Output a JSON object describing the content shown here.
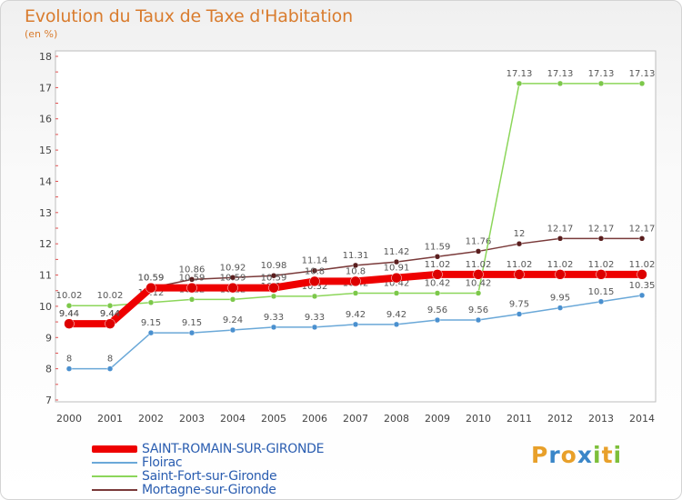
{
  "header": {
    "title": "Evolution du Taux de Taxe d'Habitation",
    "subtitle": "(en %)"
  },
  "logo": {
    "letters": [
      "P",
      "r",
      "o",
      "x",
      "i",
      "t",
      "i"
    ],
    "colors": [
      "#e8a02a",
      "#3a86c8",
      "#e8a02a",
      "#3a86c8",
      "#7dbf3a",
      "#e8a02a",
      "#7dbf3a"
    ]
  },
  "chart_data": {
    "type": "line",
    "title": "Evolution du Taux de Taxe d'Habitation",
    "ylabel": "(en %)",
    "xlabel": "",
    "x": [
      2000,
      2001,
      2002,
      2003,
      2004,
      2005,
      2006,
      2007,
      2008,
      2009,
      2010,
      2011,
      2012,
      2013,
      2014
    ],
    "ylim": [
      7,
      18
    ],
    "yticks": [
      7,
      8,
      9,
      10,
      11,
      12,
      13,
      14,
      15,
      16,
      17,
      18
    ],
    "grid": false,
    "legend": "bottom-left",
    "series": [
      {
        "name": "Mortagne-sur-Gironde",
        "color": "#7a3a3a",
        "point_color": "#5a1e1e",
        "width": 1.5,
        "labels": [
          "9.44",
          "9.44",
          "10.59",
          "10.86",
          "10.92",
          "10.98",
          "11.14",
          "11.31",
          "11.42",
          "11.59",
          "11.76",
          "12",
          "12.17",
          "12.17",
          "12.17"
        ],
        "values": [
          9.44,
          9.44,
          10.59,
          10.86,
          10.92,
          10.98,
          11.14,
          11.31,
          11.42,
          11.59,
          11.76,
          12,
          12.17,
          12.17,
          12.17
        ]
      },
      {
        "name": "Saint-Fort-sur-Gironde",
        "color": "#8cd65a",
        "point_color": "#7cc84a",
        "width": 1.5,
        "labels": [
          "10.02",
          "10.02",
          "10.12",
          "10.22",
          "10.22",
          "10.32",
          "10.32",
          "10.42",
          "10.42",
          "10.42",
          "10.42",
          "17.13",
          "17.13",
          "17.13",
          "17.13"
        ],
        "values": [
          10.02,
          10.02,
          10.12,
          10.22,
          10.22,
          10.32,
          10.32,
          10.42,
          10.42,
          10.42,
          10.42,
          17.13,
          17.13,
          17.13,
          17.13
        ]
      },
      {
        "name": "Floirac",
        "color": "#6aa8d8",
        "point_color": "#4a90cf",
        "width": 1.5,
        "labels": [
          "8",
          "8",
          "9.15",
          "9.15",
          "9.24",
          "9.33",
          "9.33",
          "9.42",
          "9.42",
          "9.56",
          "9.56",
          "9.75",
          "9.95",
          "10.15",
          "10.35"
        ],
        "values": [
          8,
          8,
          9.15,
          9.15,
          9.24,
          9.33,
          9.33,
          9.42,
          9.42,
          9.56,
          9.56,
          9.75,
          9.95,
          10.15,
          10.35
        ]
      },
      {
        "name": "SAINT-ROMAIN-SUR-GIRONDE",
        "color": "#ee0000",
        "point_color": "#dd0000",
        "width": 8,
        "labels": [
          "9.44",
          "9.44",
          "10.59",
          "10.59",
          "10.59",
          "10.59",
          "10.8",
          "10.8",
          "10.91",
          "11.02",
          "11.02",
          "11.02",
          "11.02",
          "11.02",
          "11.02"
        ],
        "values": [
          9.44,
          9.44,
          10.59,
          10.59,
          10.59,
          10.59,
          10.8,
          10.8,
          10.91,
          11.02,
          11.02,
          11.02,
          11.02,
          11.02,
          11.02
        ]
      }
    ]
  },
  "legend": {
    "items": [
      {
        "name": "SAINT-ROMAIN-SUR-GIRONDE",
        "color": "#ee0000",
        "text_color": "#2a5db0",
        "width": 8
      },
      {
        "name": "Floirac",
        "color": "#6aa8d8",
        "text_color": "#2a5db0",
        "width": 2
      },
      {
        "name": "Saint-Fort-sur-Gironde",
        "color": "#8cd65a",
        "text_color": "#2a5db0",
        "width": 2
      },
      {
        "name": "Mortagne-sur-Gironde",
        "color": "#7a3a3a",
        "text_color": "#2a5db0",
        "width": 2
      }
    ]
  }
}
